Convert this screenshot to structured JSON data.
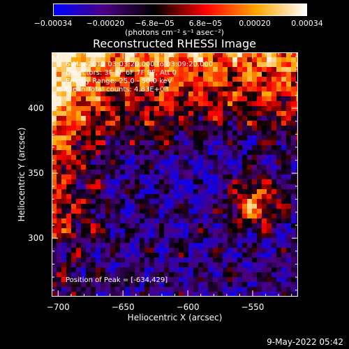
{
  "colorbar": {
    "ticks": [
      "−0.00034",
      "−0.00020",
      "−6.8e−05",
      "6.8e−05",
      "0.00020",
      "0.00034"
    ],
    "tick_values": [
      -0.00034,
      -0.0002,
      -6.8e-05,
      6.8e-05,
      0.0002,
      0.00034
    ],
    "range": [
      -0.00034,
      0.00034
    ],
    "units": "(photons cm⁻² s⁻¹ asec⁻²)",
    "colors": [
      "#0000ff",
      "#4b0082",
      "#000000",
      "#ff0000",
      "#ffa500",
      "#ffffff"
    ]
  },
  "info": {
    "time_range": "6-Mar-2012 03:03:20.000 to 03:09:20.000",
    "detectors": "Detectors: 3F 5F 6F 7F 8F, Att 0",
    "energy_range": "Energy Range: 25.0 - 50.0 keV",
    "clean": "Clean     Total counts: 4.83E+03",
    "peak": "Position of Peak = [-634,429]"
  },
  "chart_data": {
    "type": "heatmap",
    "title": "Reconstructed RHESSI Image",
    "xlabel": "Heliocentric X (arcsec)",
    "ylabel": "Heliocentric Y (arcsec)",
    "xlim": [
      -705,
      -515
    ],
    "ylim": [
      255,
      443
    ],
    "xticks": [
      -700,
      -650,
      -600,
      -550
    ],
    "xtick_labels": [
      "−700",
      "−650",
      "−600",
      "−550"
    ],
    "yticks": [
      300,
      350,
      400
    ],
    "ytick_labels": [
      "300",
      "350",
      "400"
    ],
    "peak": [
      -634,
      429
    ],
    "colorscale_range": [
      -0.00034,
      0.00034
    ]
  },
  "timestamp": "9-May-2022 05:42"
}
